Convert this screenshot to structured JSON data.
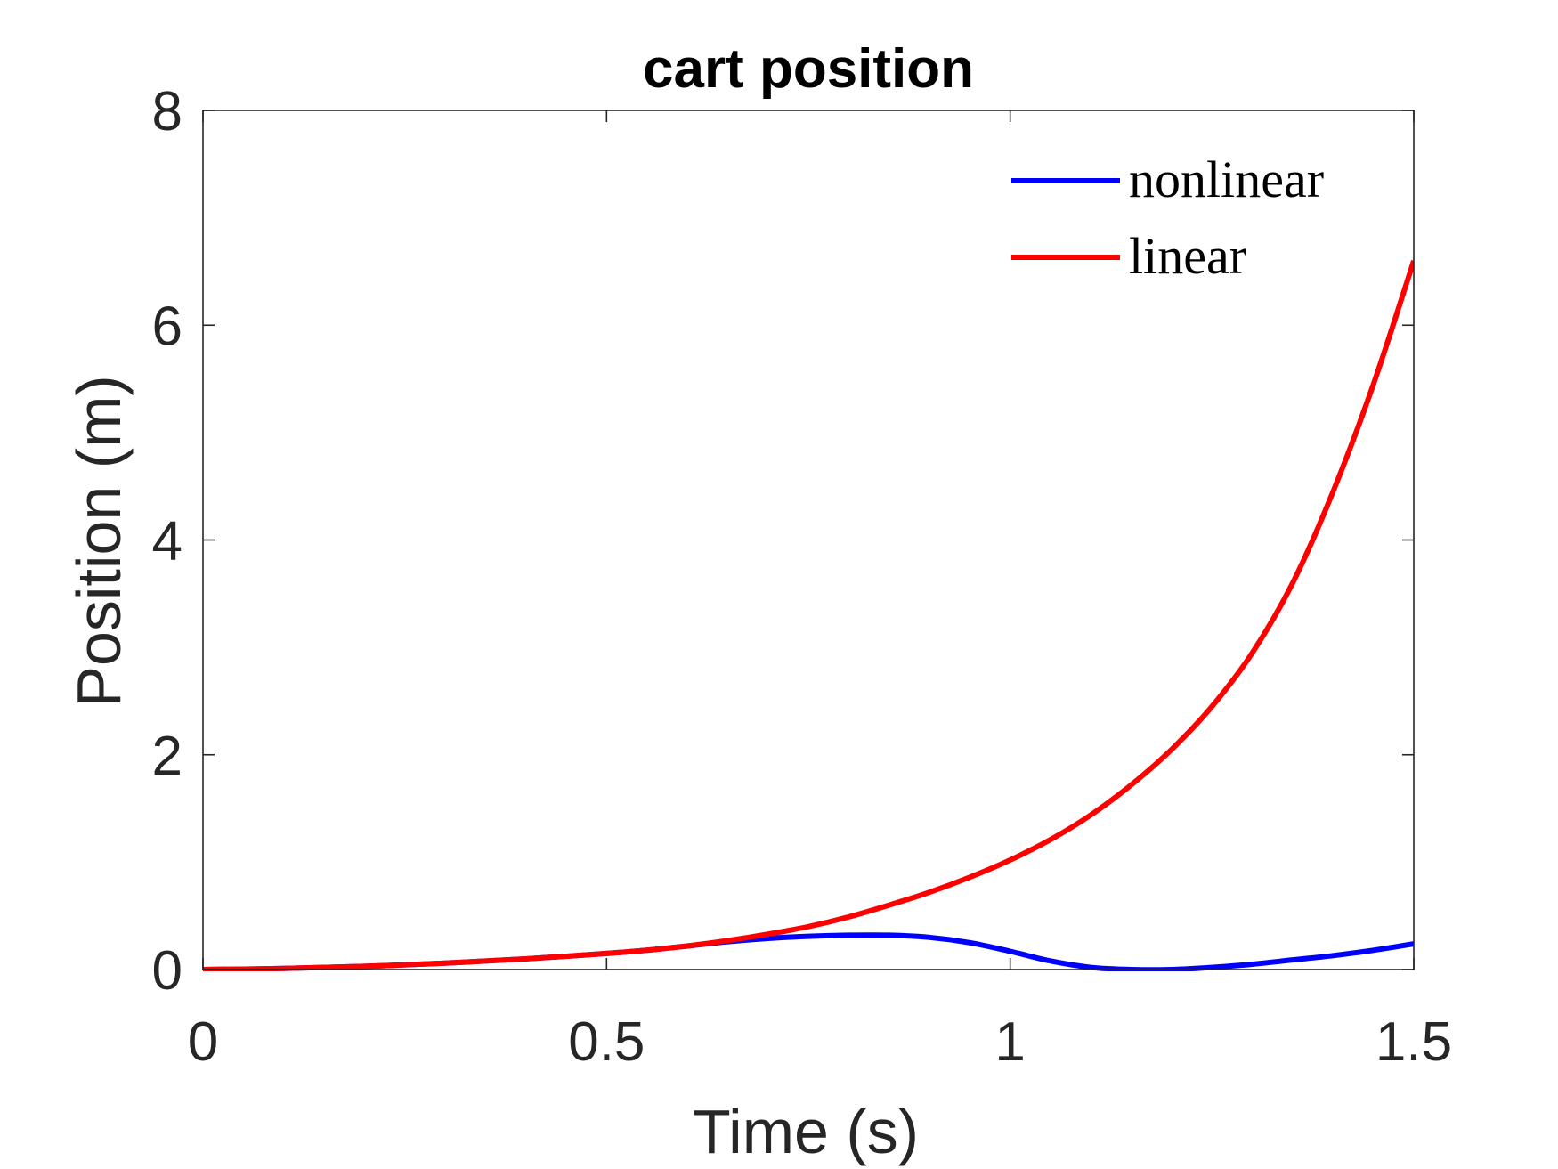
{
  "chart_data": {
    "type": "line",
    "title": "cart position",
    "xlabel": "Time (s)",
    "ylabel": "Position (m)",
    "xlim": [
      0,
      1.5
    ],
    "ylim": [
      0,
      8
    ],
    "xticks": [
      0,
      0.5,
      1,
      1.5
    ],
    "xtick_labels": [
      "0",
      "0.5",
      "1",
      "1.5"
    ],
    "yticks": [
      0,
      2,
      4,
      6,
      8
    ],
    "ytick_labels": [
      "0",
      "2",
      "4",
      "6",
      "8"
    ],
    "grid": false,
    "legend_position": "top-right",
    "series": [
      {
        "name": "nonlinear",
        "color": "#0000ff",
        "x": [
          0,
          0.1,
          0.2,
          0.3,
          0.4,
          0.5,
          0.55,
          0.6,
          0.65,
          0.7,
          0.75,
          0.8,
          0.85,
          0.9,
          0.95,
          1.0,
          1.05,
          1.1,
          1.15,
          1.2,
          1.25,
          1.3,
          1.35,
          1.4,
          1.45,
          1.5
        ],
        "y": [
          0,
          0.01,
          0.03,
          0.06,
          0.1,
          0.15,
          0.18,
          0.22,
          0.26,
          0.29,
          0.31,
          0.32,
          0.32,
          0.3,
          0.25,
          0.17,
          0.08,
          0.02,
          0.0,
          0.0,
          0.02,
          0.05,
          0.09,
          0.13,
          0.18,
          0.24
        ]
      },
      {
        "name": "linear",
        "color": "#ff0000",
        "x": [
          0,
          0.1,
          0.2,
          0.3,
          0.4,
          0.5,
          0.55,
          0.6,
          0.65,
          0.7,
          0.75,
          0.8,
          0.85,
          0.9,
          0.95,
          1.0,
          1.05,
          1.1,
          1.15,
          1.2,
          1.25,
          1.3,
          1.35,
          1.4,
          1.45,
          1.5
        ],
        "y": [
          0,
          0.01,
          0.03,
          0.06,
          0.1,
          0.15,
          0.18,
          0.22,
          0.27,
          0.33,
          0.4,
          0.49,
          0.6,
          0.72,
          0.86,
          1.02,
          1.21,
          1.44,
          1.72,
          2.05,
          2.45,
          2.95,
          3.6,
          4.45,
          5.45,
          6.6
        ]
      }
    ]
  }
}
